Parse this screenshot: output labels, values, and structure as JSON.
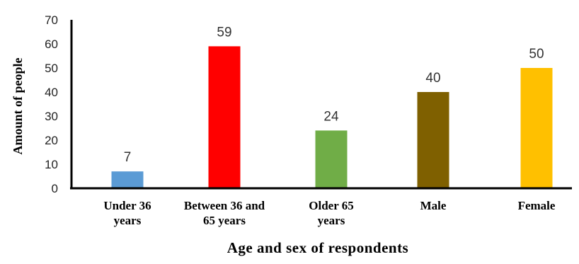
{
  "chart_data": {
    "type": "bar",
    "categories": [
      [
        "Under 36",
        "years"
      ],
      [
        "Between 36 and",
        "65 years"
      ],
      [
        "Older 65",
        "years"
      ],
      [
        "Male"
      ],
      [
        "Female"
      ]
    ],
    "values": [
      7,
      59,
      24,
      40,
      50
    ],
    "data_labels": [
      "7",
      "59",
      "24",
      "40",
      "50"
    ],
    "bar_colors": [
      "#5b9bd5",
      "#ff0000",
      "#70ad47",
      "#7f6000",
      "#ffc000"
    ],
    "ylim": [
      0,
      70
    ],
    "yticks": [
      "0",
      "10",
      "20",
      "30",
      "40",
      "50",
      "60",
      "70"
    ],
    "ylabel": "Amount of  people",
    "xlabel": "Age and sex of respondents",
    "grid": false,
    "legend": "none"
  }
}
